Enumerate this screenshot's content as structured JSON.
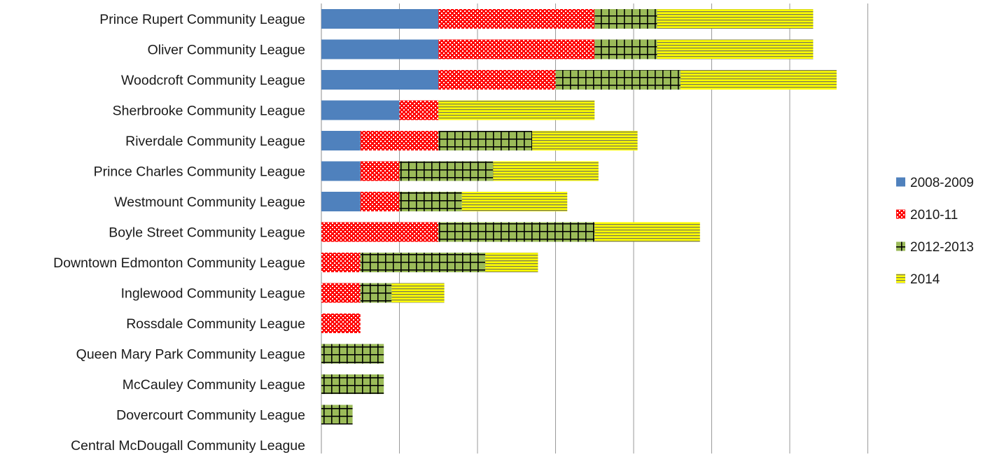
{
  "chart_data": {
    "type": "bar",
    "orientation": "horizontal",
    "stacked": true,
    "categories": [
      "Prince Rupert Community League",
      "Oliver Community League",
      "Woodcroft Community League",
      "Sherbrooke Community League",
      "Riverdale Community League",
      "Prince Charles Community League",
      "Westmount Community League",
      "Boyle Street Community League",
      "Downtown Edmonton Community League",
      "Inglewood Community League",
      "Rossdale Community League",
      "Queen Mary Park Community League",
      "McCauley Community League",
      "Dovercourt Community League",
      "Central McDougall Community League"
    ],
    "series": [
      {
        "name": "2008-2009",
        "color": "#4f81bd",
        "pattern": "solid",
        "values": [
          3,
          3,
          3,
          2,
          1,
          1,
          1,
          0,
          0,
          0,
          0,
          0,
          0,
          0,
          0
        ]
      },
      {
        "name": "2010-11",
        "color": "#ff0000",
        "pattern": "dots",
        "values": [
          4,
          4,
          3,
          1,
          2,
          1,
          1,
          3,
          1,
          1,
          1,
          0,
          0,
          0,
          0
        ]
      },
      {
        "name": "2012-2013",
        "color": "#9bbb59",
        "pattern": "grid",
        "values": [
          1.6,
          1.6,
          3.2,
          0,
          2.4,
          2.4,
          1.6,
          4,
          3.2,
          0.8,
          0,
          1.6,
          1.6,
          0.8,
          0
        ]
      },
      {
        "name": "2014",
        "color": "#ffff00",
        "pattern": "horizontal-lines",
        "values": [
          4,
          4,
          4,
          4,
          2.7,
          2.7,
          2.7,
          2.7,
          1.35,
          1.35,
          0,
          0,
          0,
          0,
          0
        ]
      }
    ],
    "xlim": [
      0,
      14
    ],
    "x_gridline_step": 2,
    "x_tick_labels_shown": false,
    "grid": true,
    "legend_position": "right"
  }
}
